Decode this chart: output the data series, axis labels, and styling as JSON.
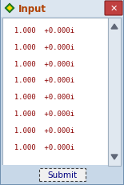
{
  "title": "Input",
  "title_bg": "#dce6f0",
  "window_bg": "#c8d8e8",
  "text_area_bg": "#ffffff",
  "text_color": "#8b0000",
  "lines": [
    "  1.000  +0.000i",
    "  1.000  +0.000i",
    "  1.000  +0.000i",
    "  1.000  +0.000i",
    "  1.000  +0.000i",
    "  1.000  +0.000i",
    "  1.000  +0.000i",
    "  1.000  +0.000i"
  ],
  "button_label": "Submit",
  "close_btn_color1": "#c04040",
  "close_btn_color2": "#a03030",
  "icon_outer": "#228B22",
  "icon_inner": "#FFD700",
  "scrollbar_bg": "#e0e8f0",
  "scrollbar_border": "#a0b0c0",
  "scrollbar_arrow": "#606878"
}
